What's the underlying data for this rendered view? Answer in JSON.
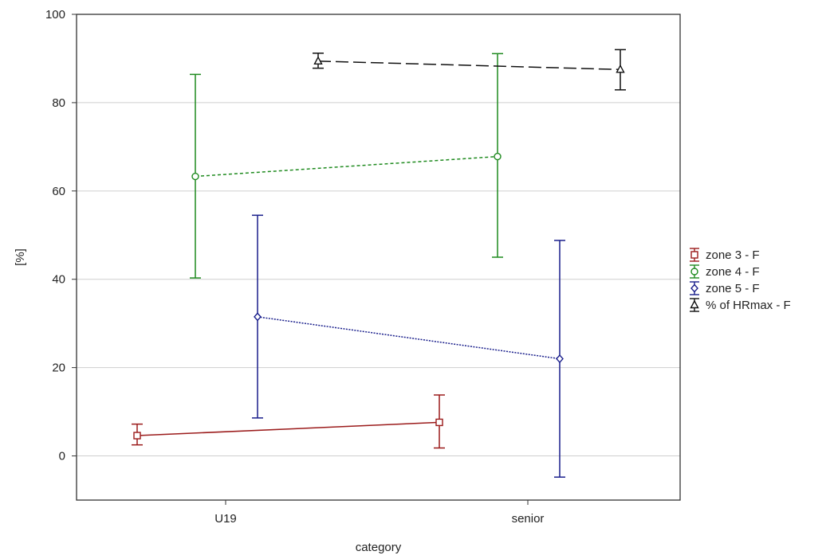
{
  "chart_data": {
    "type": "line",
    "title": "",
    "xlabel": "category",
    "ylabel": "[%]",
    "categories": [
      "U19",
      "senior"
    ],
    "ylim": [
      -10,
      100
    ],
    "yticks": [
      0,
      20,
      40,
      60,
      80,
      100
    ],
    "grid": true,
    "legend_position": "right",
    "series": [
      {
        "name": "zone 3 - F",
        "color": "#9b1b1b",
        "marker": "square",
        "line_style": "solid",
        "values": [
          4.6,
          7.6
        ],
        "error_low": [
          2.5,
          1.8
        ],
        "error_high": [
          7.2,
          13.8
        ]
      },
      {
        "name": "zone 4 - F",
        "color": "#1e8a1e",
        "marker": "circle",
        "line_style": "dotted",
        "values": [
          63.3,
          67.8
        ],
        "error_low": [
          40.3,
          45.0
        ],
        "error_high": [
          86.4,
          91.1
        ]
      },
      {
        "name": "zone 5 - F",
        "color": "#1a1f8c",
        "marker": "diamond",
        "line_style": "dense-dot",
        "values": [
          31.5,
          22.0
        ],
        "error_low": [
          8.6,
          -4.8
        ],
        "error_high": [
          54.5,
          48.8
        ]
      },
      {
        "name": "% of HRmax - F",
        "color": "#111111",
        "marker": "triangle",
        "line_style": "dashed",
        "values": [
          89.4,
          87.5
        ],
        "error_low": [
          87.8,
          82.9
        ],
        "error_high": [
          91.2,
          92.0
        ]
      }
    ]
  }
}
